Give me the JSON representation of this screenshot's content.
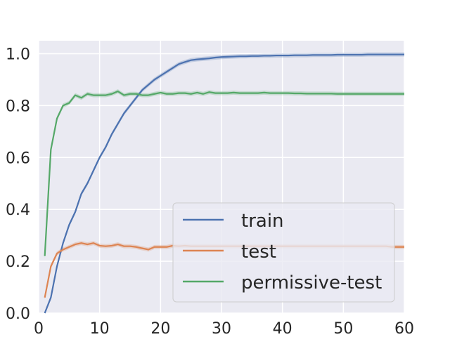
{
  "chart_data": {
    "type": "line",
    "title": "",
    "xlabel": "",
    "ylabel": "",
    "xlim": [
      0,
      60
    ],
    "ylim": [
      0,
      1.05
    ],
    "xticks": [
      0,
      10,
      20,
      30,
      40,
      50,
      60
    ],
    "yticks": [
      0.0,
      0.2,
      0.4,
      0.6,
      0.8,
      1.0
    ],
    "xtick_labels": [
      "0",
      "10",
      "20",
      "30",
      "40",
      "50",
      "60"
    ],
    "ytick_labels": [
      "0.0",
      "0.2",
      "0.4",
      "0.6",
      "0.8",
      "1.0"
    ],
    "grid": true,
    "legend_position": "lower-right",
    "background": "#eaeaf2",
    "x": [
      1,
      2,
      3,
      4,
      5,
      6,
      7,
      8,
      9,
      10,
      11,
      12,
      13,
      14,
      15,
      16,
      17,
      18,
      19,
      20,
      21,
      22,
      23,
      24,
      25,
      26,
      27,
      28,
      29,
      30,
      31,
      32,
      33,
      34,
      35,
      36,
      37,
      38,
      39,
      40,
      41,
      42,
      43,
      44,
      45,
      46,
      47,
      48,
      49,
      50,
      51,
      52,
      53,
      54,
      55,
      56,
      57,
      58,
      59,
      60
    ],
    "series": [
      {
        "name": "train",
        "color": "#4c72b0",
        "values": [
          0.0,
          0.06,
          0.18,
          0.27,
          0.34,
          0.39,
          0.46,
          0.5,
          0.55,
          0.6,
          0.64,
          0.69,
          0.73,
          0.77,
          0.8,
          0.83,
          0.86,
          0.88,
          0.9,
          0.915,
          0.93,
          0.945,
          0.96,
          0.968,
          0.975,
          0.978,
          0.98,
          0.982,
          0.985,
          0.987,
          0.988,
          0.989,
          0.99,
          0.99,
          0.991,
          0.991,
          0.992,
          0.992,
          0.993,
          0.993,
          0.993,
          0.994,
          0.994,
          0.994,
          0.995,
          0.995,
          0.995,
          0.995,
          0.996,
          0.996,
          0.996,
          0.996,
          0.996,
          0.997,
          0.997,
          0.997,
          0.997,
          0.997,
          0.997,
          0.997
        ]
      },
      {
        "name": "test",
        "color": "#dd8452",
        "values": [
          0.06,
          0.18,
          0.23,
          0.245,
          0.255,
          0.265,
          0.27,
          0.265,
          0.27,
          0.26,
          0.258,
          0.26,
          0.265,
          0.258,
          0.258,
          0.255,
          0.25,
          0.245,
          0.255,
          0.255,
          0.255,
          0.26,
          0.258,
          0.26,
          0.258,
          0.258,
          0.258,
          0.258,
          0.258,
          0.258,
          0.258,
          0.258,
          0.258,
          0.258,
          0.258,
          0.258,
          0.258,
          0.258,
          0.258,
          0.258,
          0.258,
          0.258,
          0.258,
          0.258,
          0.258,
          0.258,
          0.258,
          0.258,
          0.258,
          0.258,
          0.258,
          0.258,
          0.258,
          0.258,
          0.258,
          0.258,
          0.258,
          0.255,
          0.255,
          0.255
        ]
      },
      {
        "name": "permissive-test",
        "color": "#55a868",
        "values": [
          0.22,
          0.63,
          0.75,
          0.8,
          0.81,
          0.84,
          0.83,
          0.845,
          0.84,
          0.84,
          0.84,
          0.845,
          0.855,
          0.84,
          0.845,
          0.845,
          0.84,
          0.84,
          0.845,
          0.85,
          0.845,
          0.845,
          0.848,
          0.848,
          0.845,
          0.85,
          0.845,
          0.852,
          0.848,
          0.848,
          0.848,
          0.85,
          0.848,
          0.848,
          0.848,
          0.848,
          0.85,
          0.848,
          0.848,
          0.848,
          0.848,
          0.847,
          0.847,
          0.846,
          0.846,
          0.846,
          0.846,
          0.846,
          0.845,
          0.845,
          0.845,
          0.845,
          0.845,
          0.845,
          0.845,
          0.845,
          0.845,
          0.845,
          0.845,
          0.845
        ]
      }
    ]
  }
}
